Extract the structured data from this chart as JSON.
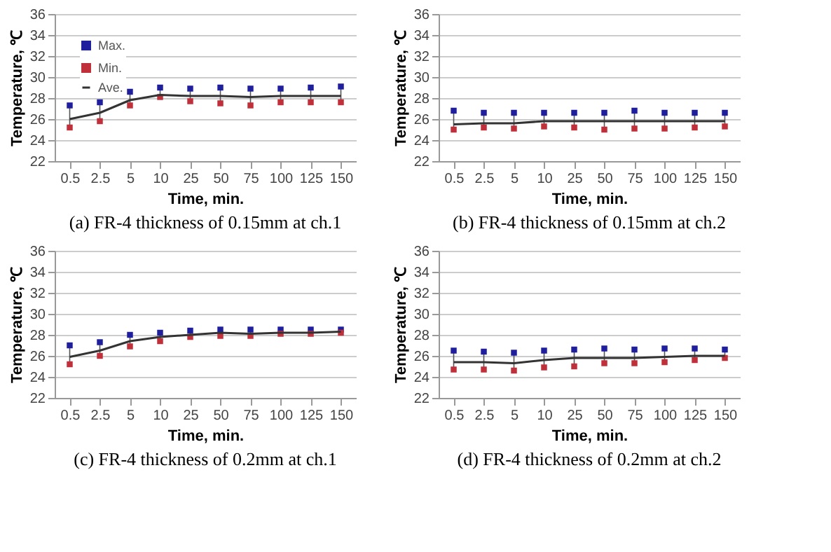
{
  "chart_data": [
    {
      "type": "line",
      "title": "(a)  FR-4  thickness  of  0.15mm  at  ch.1",
      "xlabel": "Time, min.",
      "ylabel": "Temperature, ℃",
      "categories": [
        "0.5",
        "2.5",
        "5",
        "10",
        "25",
        "50",
        "75",
        "100",
        "125",
        "150"
      ],
      "ylim": [
        22,
        36
      ],
      "yticks": [
        22,
        24,
        26,
        28,
        30,
        32,
        34,
        36
      ],
      "grid": "y",
      "legend": "top left",
      "series": [
        {
          "name": "Max.",
          "type": "scatter",
          "marker": "square",
          "color": "#1f1f9e",
          "values": [
            27.3,
            27.6,
            28.6,
            29.0,
            28.9,
            29.0,
            28.9,
            28.9,
            29.0,
            29.1
          ]
        },
        {
          "name": "Min.",
          "type": "scatter",
          "marker": "square",
          "color": "#c0303a",
          "values": [
            25.2,
            25.8,
            27.3,
            28.1,
            27.7,
            27.5,
            27.3,
            27.6,
            27.6,
            27.6
          ]
        },
        {
          "name": "Ave.",
          "color": "#333333",
          "values": [
            26.0,
            26.6,
            27.8,
            28.3,
            28.2,
            28.2,
            28.1,
            28.2,
            28.2,
            28.2
          ]
        }
      ]
    },
    {
      "type": "line",
      "title": "(b)  FR-4  thickness  of  0.15mm  at  ch.2",
      "xlabel": "Time, min.",
      "ylabel": "Temperature, ℃",
      "categories": [
        "0.5",
        "2.5",
        "5",
        "10",
        "25",
        "50",
        "75",
        "100",
        "125",
        "150"
      ],
      "ylim": [
        22,
        36
      ],
      "yticks": [
        22,
        24,
        26,
        28,
        30,
        32,
        34,
        36
      ],
      "grid": "y",
      "legend": "top left",
      "series": [
        {
          "name": "Max.",
          "type": "scatter",
          "marker": "square",
          "color": "#1f1f9e",
          "values": [
            26.8,
            26.6,
            26.6,
            26.6,
            26.6,
            26.6,
            26.8,
            26.6,
            26.6,
            26.6
          ]
        },
        {
          "name": "Min.",
          "type": "scatter",
          "marker": "square",
          "color": "#c0303a",
          "values": [
            25.0,
            25.2,
            25.1,
            25.3,
            25.2,
            25.0,
            25.1,
            25.1,
            25.2,
            25.3
          ]
        },
        {
          "name": "Ave.",
          "color": "#333333",
          "values": [
            25.5,
            25.6,
            25.6,
            25.8,
            25.8,
            25.8,
            25.8,
            25.8,
            25.8,
            25.8
          ]
        }
      ]
    },
    {
      "type": "line",
      "title": "(c)  FR-4  thickness  of  0.2mm  at  ch.1",
      "xlabel": "Time, min.",
      "ylabel": "Temperature, ℃",
      "categories": [
        "0.5",
        "2.5",
        "5",
        "10",
        "25",
        "50",
        "75",
        "100",
        "125",
        "150"
      ],
      "ylim": [
        22,
        36
      ],
      "yticks": [
        22,
        24,
        26,
        28,
        30,
        32,
        34,
        36
      ],
      "grid": "y",
      "legend": "top left",
      "series": [
        {
          "name": "Max.",
          "type": "scatter",
          "marker": "square",
          "color": "#1f1f9e",
          "values": [
            27.0,
            27.3,
            28.0,
            28.2,
            28.4,
            28.5,
            28.5,
            28.5,
            28.5,
            28.5
          ]
        },
        {
          "name": "Min.",
          "type": "scatter",
          "marker": "square",
          "color": "#c0303a",
          "values": [
            25.2,
            26.0,
            26.9,
            27.4,
            27.8,
            27.9,
            27.9,
            28.1,
            28.1,
            28.2
          ]
        },
        {
          "name": "Ave.",
          "color": "#333333",
          "values": [
            25.9,
            26.5,
            27.4,
            27.8,
            28.0,
            28.2,
            28.1,
            28.2,
            28.2,
            28.3
          ]
        }
      ]
    },
    {
      "type": "line",
      "title": "(d)  FR-4  thickness  of  0.2mm  at  ch.2",
      "xlabel": "Time, min.",
      "ylabel": "Temperature, ℃",
      "categories": [
        "0.5",
        "2.5",
        "5",
        "10",
        "25",
        "50",
        "75",
        "100",
        "125",
        "150"
      ],
      "ylim": [
        22,
        36
      ],
      "yticks": [
        22,
        24,
        26,
        28,
        30,
        32,
        34,
        36
      ],
      "grid": "y",
      "legend": "top left",
      "series": [
        {
          "name": "Max.",
          "type": "scatter",
          "marker": "square",
          "color": "#1f1f9e",
          "values": [
            26.5,
            26.4,
            26.3,
            26.5,
            26.6,
            26.7,
            26.6,
            26.7,
            26.7,
            26.6
          ]
        },
        {
          "name": "Min.",
          "type": "scatter",
          "marker": "square",
          "color": "#c0303a",
          "values": [
            24.7,
            24.7,
            24.6,
            24.9,
            25.0,
            25.3,
            25.3,
            25.4,
            25.6,
            25.8
          ]
        },
        {
          "name": "Ave.",
          "color": "#333333",
          "values": [
            25.4,
            25.4,
            25.3,
            25.6,
            25.8,
            25.8,
            25.8,
            25.9,
            26.0,
            26.0
          ]
        }
      ]
    }
  ]
}
